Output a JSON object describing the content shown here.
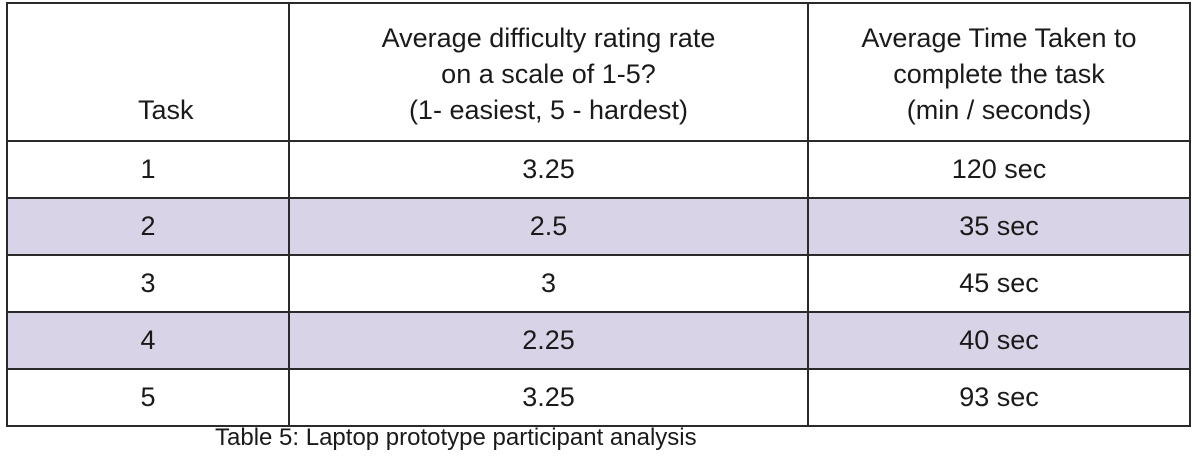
{
  "table": {
    "headers": {
      "task": "Task",
      "difficulty_lines": [
        "Average difficulty rating rate",
        "on a scale of 1-5?",
        "(1- easiest, 5 - hardest)"
      ],
      "time_lines": [
        "Average Time Taken to",
        "complete the task",
        "(min / seconds)"
      ]
    },
    "rows": [
      {
        "task": "1",
        "difficulty": "3.25",
        "time": "120 sec"
      },
      {
        "task": "2",
        "difficulty": "2.5",
        "time": "35 sec"
      },
      {
        "task": "3",
        "difficulty": "3",
        "time": "45 sec"
      },
      {
        "task": "4",
        "difficulty": "2.25",
        "time": "40 sec"
      },
      {
        "task": "5",
        "difficulty": "3.25",
        "time": "93 sec"
      }
    ],
    "shaded_row_color": "#d8d3e6"
  },
  "caption": "Table 5: Laptop prototype participant analysis"
}
